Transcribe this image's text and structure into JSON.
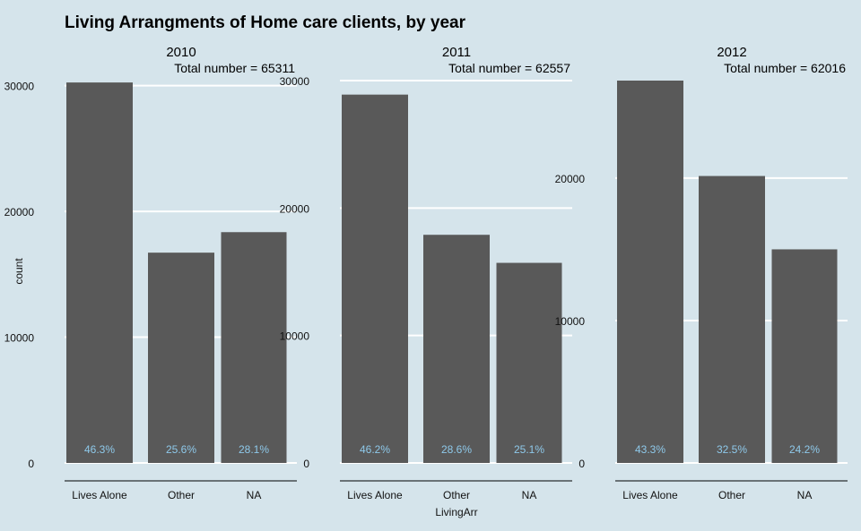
{
  "chart_data": {
    "type": "bar",
    "title": "Living Arrangments of Home care clients, by year",
    "xlabel": "LivingArr",
    "ylabel": "count",
    "categories": [
      "Lives Alone",
      "Other",
      "NA"
    ],
    "grid": true,
    "facets": [
      {
        "name": "2010",
        "total_label": "Total number = 65311",
        "values": [
          30250,
          16720,
          18350
        ],
        "percent_labels": [
          "46.3%",
          "25.6%",
          "28.1%"
        ],
        "ylim": [
          0,
          30400
        ],
        "yticks": [
          0,
          10000,
          20000,
          30000
        ],
        "ytick_labels": [
          "0",
          "10000",
          "20000",
          "30000"
        ]
      },
      {
        "name": "2011",
        "total_label": "Total number = 62557",
        "values": [
          28900,
          17900,
          15700
        ],
        "percent_labels": [
          "46.2%",
          "28.6%",
          "25.1%"
        ],
        "ylim": [
          0,
          30000
        ],
        "yticks": [
          0,
          10000,
          20000,
          30000
        ],
        "ytick_labels": [
          "0",
          "10000",
          "20000",
          "30000"
        ]
      },
      {
        "name": "2012",
        "total_label": "Total number = 62016",
        "values": [
          26850,
          20150,
          15000
        ],
        "percent_labels": [
          "43.3%",
          "32.5%",
          "24.2%"
        ],
        "ylim": [
          0,
          26850
        ],
        "yticks": [
          0,
          10000,
          20000
        ],
        "ytick_labels": [
          "0",
          "10000",
          "20000"
        ]
      }
    ]
  }
}
